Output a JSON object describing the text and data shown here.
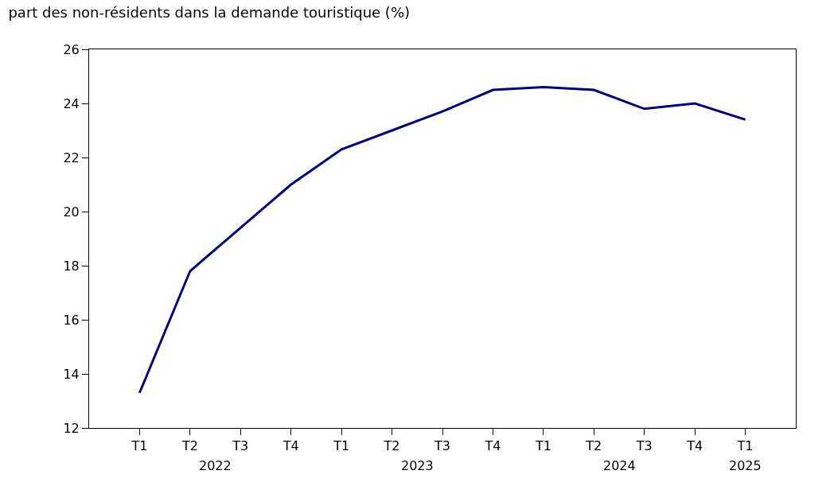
{
  "chart_data": {
    "type": "line",
    "title": "part des non-résidents dans la demande touristique (%)",
    "categories": [
      "T1",
      "T2",
      "T3",
      "T4",
      "T1",
      "T2",
      "T3",
      "T4",
      "T1",
      "T2",
      "T3",
      "T4",
      "T1"
    ],
    "series": [
      {
        "color": "#000080",
        "values": [
          13.3,
          17.8,
          19.4,
          21.0,
          22.3,
          23.0,
          23.7,
          24.5,
          24.6,
          24.5,
          23.8,
          24.0,
          23.4
        ]
      }
    ],
    "annotations": [
      "2022",
      "2023",
      "2024",
      "2025"
    ],
    "ylim": [
      12,
      26
    ],
    "yticks": [
      12,
      14,
      16,
      18,
      20,
      22,
      24,
      26
    ],
    "line_style": "solid",
    "marker": "none"
  }
}
